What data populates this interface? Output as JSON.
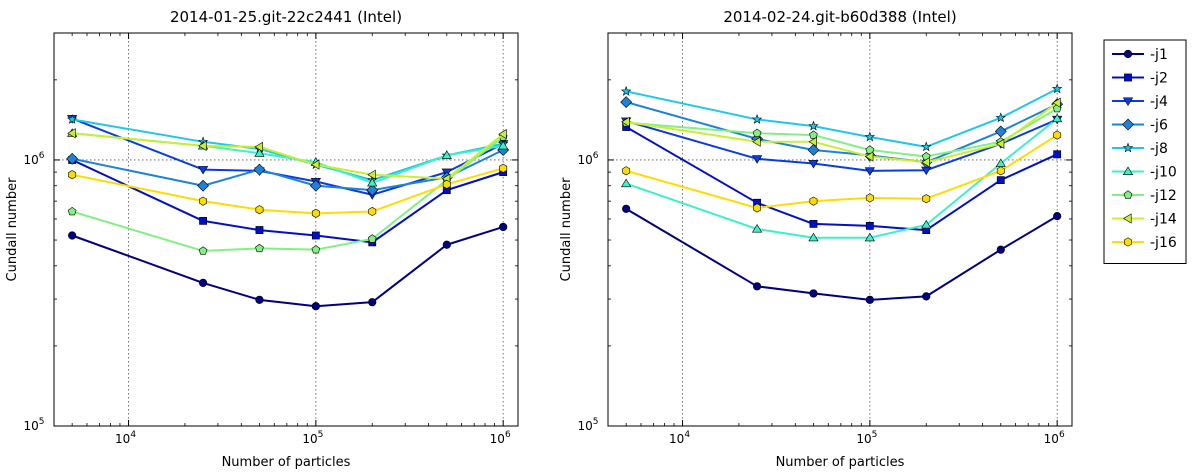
{
  "chart_data": [
    {
      "type": "line",
      "title": "2014-01-25.git-22c2441 (Intel)",
      "xlabel": "Number of particles",
      "ylabel": "Cundall number",
      "xscale": "log",
      "yscale": "log",
      "xlim": [
        4000,
        1200000
      ],
      "ylim": [
        100000,
        3000000
      ],
      "grid": true,
      "x": [
        5000,
        25000,
        50000,
        100000,
        200000,
        500000,
        1000000
      ],
      "x_ticks": [
        {
          "value": 10000,
          "base": "10",
          "exp": "4"
        },
        {
          "value": 100000,
          "base": "10",
          "exp": "5"
        },
        {
          "value": 1000000,
          "base": "10",
          "exp": "6"
        }
      ],
      "y_ticks": [
        {
          "value": 100000,
          "base": "10",
          "exp": "5"
        },
        {
          "value": 1000000,
          "base": "10",
          "exp": "6"
        }
      ],
      "series": [
        {
          "name": "-j1",
          "color": "#000080",
          "marker": "circle",
          "values": [
            520000,
            345000,
            298000,
            282000,
            292000,
            480000,
            560000
          ]
        },
        {
          "name": "-j2",
          "color": "#0010c8",
          "marker": "square",
          "values": [
            1000000,
            590000,
            545000,
            520000,
            490000,
            770000,
            900000
          ]
        },
        {
          "name": "-j4",
          "color": "#0a3ce6",
          "marker": "triangle-down",
          "values": [
            1430000,
            920000,
            910000,
            830000,
            740000,
            900000,
            1150000
          ]
        },
        {
          "name": "-j6",
          "color": "#1e82dc",
          "marker": "diamond",
          "values": [
            1010000,
            800000,
            920000,
            800000,
            770000,
            860000,
            1090000
          ]
        },
        {
          "name": "-j8",
          "color": "#1ec8e6",
          "marker": "star",
          "values": [
            1420000,
            1170000,
            1100000,
            960000,
            840000,
            1040000,
            1150000
          ]
        },
        {
          "name": "-j10",
          "color": "#3cf0c8",
          "marker": "triangle-up",
          "values": [
            1260000,
            1130000,
            1060000,
            980000,
            820000,
            1040000,
            1130000
          ]
        },
        {
          "name": "-j12",
          "color": "#82f082",
          "marker": "pentagon",
          "values": [
            640000,
            455000,
            465000,
            460000,
            505000,
            840000,
            1220000
          ]
        },
        {
          "name": "-j14",
          "color": "#c8f032",
          "marker": "triangle-left",
          "values": [
            1260000,
            1130000,
            1120000,
            960000,
            880000,
            850000,
            1250000
          ]
        },
        {
          "name": "-j16",
          "color": "#ffdc00",
          "marker": "hexagon",
          "values": [
            880000,
            700000,
            650000,
            630000,
            640000,
            810000,
            930000
          ]
        }
      ]
    },
    {
      "type": "line",
      "title": "2014-02-24.git-b60d388 (Intel)",
      "xlabel": "Number of particles",
      "ylabel": "Cundall number",
      "xscale": "log",
      "yscale": "log",
      "xlim": [
        4000,
        1200000
      ],
      "ylim": [
        100000,
        3000000
      ],
      "grid": true,
      "x": [
        5000,
        25000,
        50000,
        100000,
        200000,
        500000,
        1000000
      ],
      "x_ticks": [
        {
          "value": 10000,
          "base": "10",
          "exp": "4"
        },
        {
          "value": 100000,
          "base": "10",
          "exp": "5"
        },
        {
          "value": 1000000,
          "base": "10",
          "exp": "6"
        }
      ],
      "y_ticks": [
        {
          "value": 100000,
          "base": "10",
          "exp": "5"
        },
        {
          "value": 1000000,
          "base": "10",
          "exp": "6"
        }
      ],
      "series": [
        {
          "name": "-j1",
          "color": "#000080",
          "marker": "circle",
          "values": [
            655000,
            335000,
            315000,
            298000,
            307000,
            460000,
            615000
          ]
        },
        {
          "name": "-j2",
          "color": "#0010c8",
          "marker": "square",
          "values": [
            1330000,
            690000,
            575000,
            565000,
            545000,
            840000,
            1050000
          ]
        },
        {
          "name": "-j4",
          "color": "#0a3ce6",
          "marker": "triangle-down",
          "values": [
            1400000,
            1010000,
            970000,
            910000,
            915000,
            1150000,
            1420000
          ]
        },
        {
          "name": "-j6",
          "color": "#1e82dc",
          "marker": "diamond",
          "values": [
            1650000,
            1200000,
            1090000,
            1040000,
            980000,
            1280000,
            1620000
          ]
        },
        {
          "name": "-j8",
          "color": "#1ec8e6",
          "marker": "star",
          "values": [
            1810000,
            1420000,
            1340000,
            1220000,
            1120000,
            1440000,
            1850000
          ]
        },
        {
          "name": "-j10",
          "color": "#3cf0c8",
          "marker": "triangle-up",
          "values": [
            815000,
            550000,
            510000,
            510000,
            570000,
            970000,
            1430000
          ]
        },
        {
          "name": "-j12",
          "color": "#82f082",
          "marker": "pentagon",
          "values": [
            1380000,
            1260000,
            1240000,
            1090000,
            1030000,
            1170000,
            1560000
          ]
        },
        {
          "name": "-j14",
          "color": "#c8f032",
          "marker": "triangle-left",
          "values": [
            1390000,
            1170000,
            1170000,
            1030000,
            980000,
            1150000,
            1640000
          ]
        },
        {
          "name": "-j16",
          "color": "#ffdc00",
          "marker": "hexagon",
          "values": [
            910000,
            660000,
            700000,
            720000,
            715000,
            910000,
            1240000
          ]
        }
      ]
    }
  ],
  "legend": {
    "placement": "right",
    "entries": [
      "-j1",
      "-j2",
      "-j4",
      "-j6",
      "-j8",
      "-j10",
      "-j12",
      "-j14",
      "-j16"
    ]
  }
}
